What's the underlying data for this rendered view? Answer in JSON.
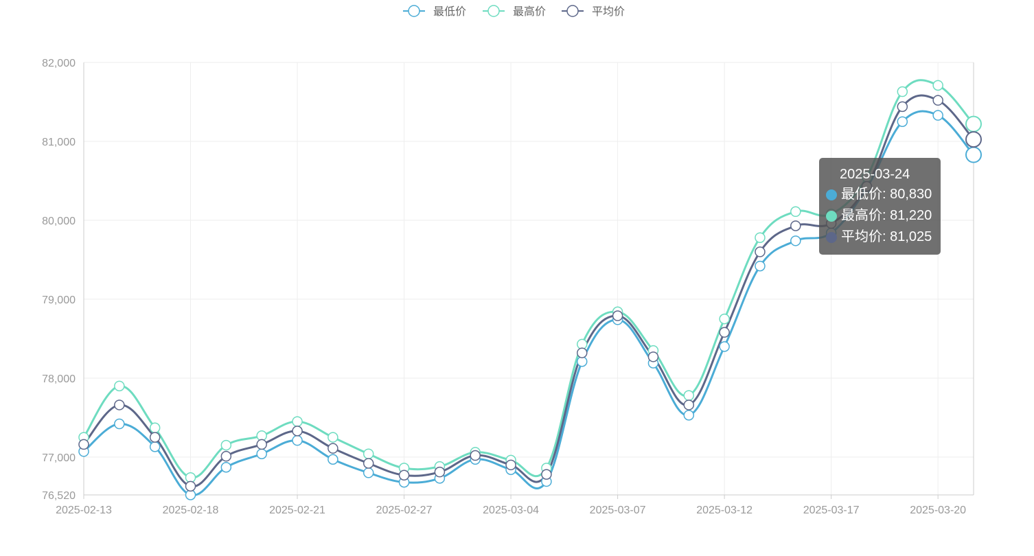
{
  "chart_data": {
    "type": "line",
    "title": "",
    "xlabel": "",
    "ylabel": "",
    "ylim": [
      76520,
      82000
    ],
    "y_ticks": [
      "76,520",
      "77,000",
      "78,000",
      "79,000",
      "80,000",
      "81,000",
      "82,000"
    ],
    "y_tick_values": [
      76520,
      77000,
      78000,
      79000,
      80000,
      81000,
      82000
    ],
    "x_tick_labels": [
      "2025-02-13",
      "2025-02-18",
      "2025-02-21",
      "2025-02-27",
      "2025-03-04",
      "2025-03-07",
      "2025-03-12",
      "2025-03-17",
      "2025-03-20"
    ],
    "x_tick_index": [
      0,
      3,
      6,
      9,
      12,
      15,
      18,
      21,
      24
    ],
    "grid": true,
    "legend_position": "top-center",
    "series": [
      {
        "name": "最低价",
        "color": "#4bacd6",
        "values": [
          77070,
          77420,
          77130,
          76520,
          76870,
          77040,
          77210,
          76970,
          76800,
          76680,
          76730,
          76970,
          76840,
          76690,
          78210,
          78740,
          78190,
          77530,
          78400,
          79420,
          79740,
          79840,
          80410,
          81250,
          81330,
          80830
        ]
      },
      {
        "name": "最高价",
        "color": "#6edcc0",
        "values": [
          77250,
          77900,
          77370,
          76740,
          77150,
          77270,
          77450,
          77250,
          77040,
          76860,
          76880,
          77060,
          76960,
          76860,
          78430,
          78840,
          78350,
          77780,
          78750,
          79780,
          80110,
          80080,
          80550,
          81630,
          81710,
          81220
        ]
      },
      {
        "name": "平均价",
        "color": "#5d6789",
        "values": [
          77160,
          77660,
          77250,
          76630,
          77010,
          77160,
          77330,
          77110,
          76920,
          76770,
          76810,
          77020,
          76900,
          76780,
          78320,
          78790,
          78270,
          77660,
          78580,
          79600,
          79930,
          79960,
          80430,
          81440,
          81520,
          81025
        ]
      }
    ]
  },
  "legend": [
    {
      "label": "最低价",
      "color": "#4bacd6"
    },
    {
      "label": "最高价",
      "color": "#6edcc0"
    },
    {
      "label": "平均价",
      "color": "#5d6789"
    }
  ],
  "tooltip": {
    "title": "2025-03-24",
    "rows": [
      {
        "text": "最低价: 80,830",
        "color": "#4bacd6"
      },
      {
        "text": "最高价: 81,220",
        "color": "#6edcc0"
      },
      {
        "text": "平均价: 81,025",
        "color": "#5d6789"
      }
    ]
  }
}
